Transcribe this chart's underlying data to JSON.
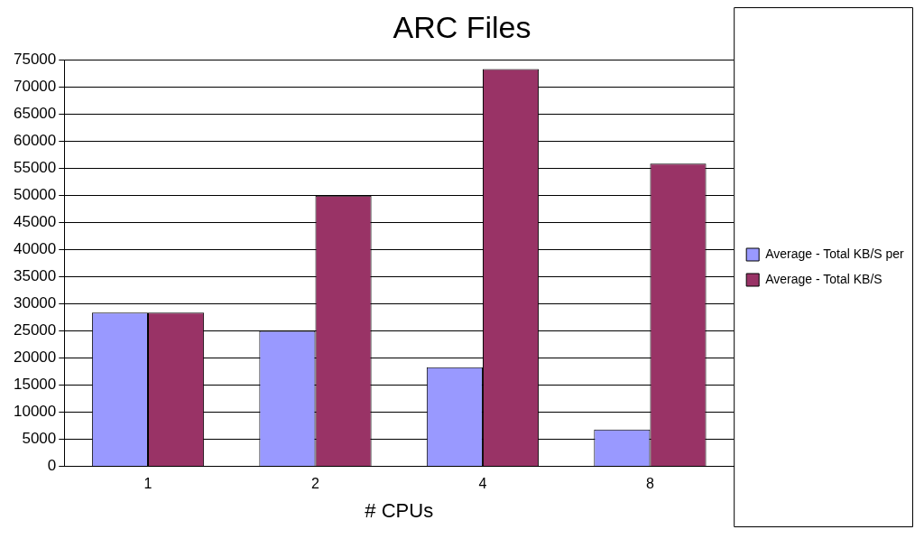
{
  "chart_data": {
    "type": "bar",
    "title": "ARC Files",
    "xlabel": "# CPUs",
    "categories": [
      "1",
      "2",
      "4",
      "8"
    ],
    "series": [
      {
        "name": "Average - Total KB/S per",
        "color": "#9999ff",
        "values": [
          28400,
          25000,
          18300,
          6800
        ]
      },
      {
        "name": "Average - Total KB/S",
        "color": "#993366",
        "values": [
          28400,
          50000,
          73400,
          55900
        ]
      }
    ],
    "ylim": [
      0,
      75000
    ],
    "yticks": [
      0,
      5000,
      10000,
      15000,
      20000,
      25000,
      30000,
      35000,
      40000,
      45000,
      50000,
      55000,
      60000,
      65000,
      70000,
      75000
    ],
    "grid": "y",
    "legend": "right"
  }
}
